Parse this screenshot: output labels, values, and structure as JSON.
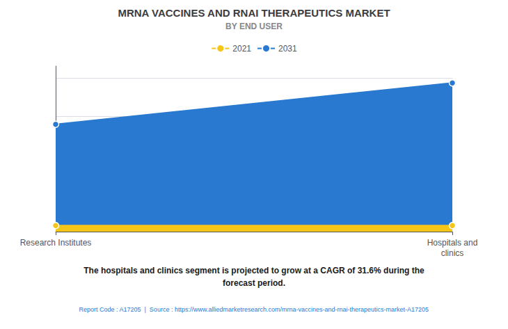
{
  "chart_data": {
    "type": "area",
    "title": "MRNA VACCINES AND RNAI THERAPEUTICS MARKET",
    "subtitle": "BY END USER",
    "categories": [
      "Research Institutes",
      "Hospitals and\nclinics"
    ],
    "series": [
      {
        "name": "2021",
        "color": "#F5C518",
        "values": [
          0.04,
          0.04
        ]
      },
      {
        "name": "2031",
        "color": "#2979D0",
        "values": [
          0.7,
          0.97
        ]
      }
    ],
    "ylim": [
      0,
      1.08
    ],
    "yticks": [
      0,
      0.25,
      0.5,
      0.75,
      1.0
    ],
    "grid": true,
    "legend": "top",
    "tick_labels": "x",
    "annotations": [
      "The hospitals and clinics segment is projected to grow at a CAGR of 31.6% during the",
      "forecast period.",
      "Report Code : A17205  |  Source : https://www.alliedmarketresearch.com/mrna-vaccines-and-rnai-therapeutics-market-A17205"
    ]
  }
}
